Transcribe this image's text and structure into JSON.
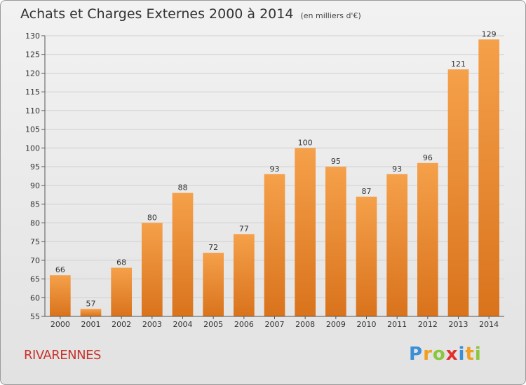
{
  "header": {
    "title": "Achats et Charges Externes 2000 à 2014",
    "subtitle": "(en milliers d'€)"
  },
  "footer": {
    "commune": "RIVARENNES",
    "logo_letters": [
      "P",
      "r",
      "o",
      "x",
      "i",
      "t",
      "i"
    ],
    "logo_colors": [
      "#3a8fd6",
      "#f0a020",
      "#8cc63f",
      "#e2312d",
      "#3a8fd6",
      "#f0a020",
      "#8cc63f"
    ]
  },
  "chart_data": {
    "type": "bar",
    "title": "Achats et Charges Externes 2000 à 2014",
    "subtitle": "(en milliers d'€)",
    "categories": [
      "2000",
      "2001",
      "2002",
      "2003",
      "2004",
      "2005",
      "2006",
      "2007",
      "2008",
      "2009",
      "2010",
      "2011",
      "2012",
      "2013",
      "2014"
    ],
    "values": [
      66,
      57,
      68,
      80,
      88,
      72,
      77,
      93,
      100,
      95,
      87,
      93,
      96,
      121,
      129
    ],
    "xlabel": "",
    "ylabel": "",
    "ylim": [
      55,
      130
    ],
    "yticks": [
      55,
      60,
      65,
      70,
      75,
      80,
      85,
      90,
      95,
      100,
      105,
      110,
      115,
      120,
      125,
      130
    ],
    "grid": true,
    "bar_color_top": "#f5a04a",
    "bar_color_bottom": "#d9731c"
  }
}
